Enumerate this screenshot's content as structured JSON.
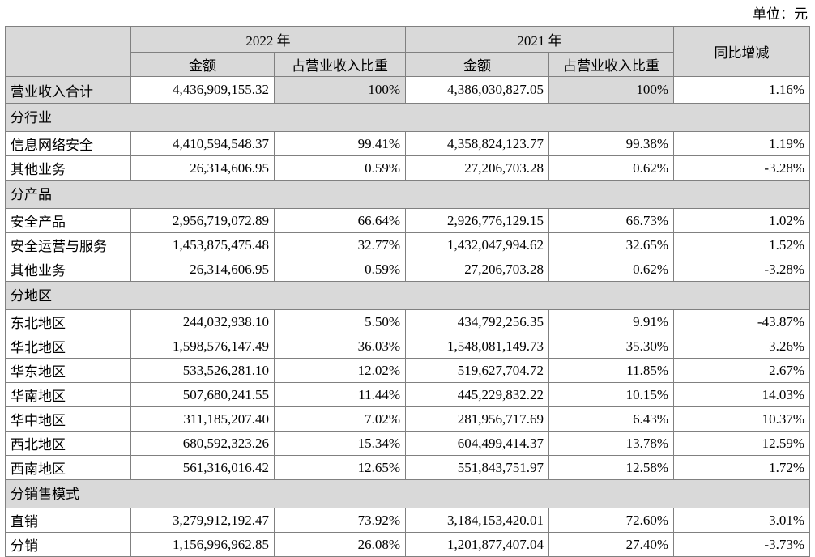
{
  "unit_label": "单位：元",
  "columns": {
    "year_2022": "2022 年",
    "year_2021": "2021 年",
    "amount": "金额",
    "share": "占营业收入比重",
    "yoy": "同比增减"
  },
  "colors": {
    "header_bg": "#d9d9d9",
    "border": "#808080"
  },
  "table": {
    "total_row": {
      "label": "营业收入合计",
      "amount_2022": "4,436,909,155.32",
      "share_2022": "100%",
      "amount_2021": "4,386,030,827.05",
      "share_2021": "100%",
      "yoy": "1.16%"
    },
    "sections": [
      {
        "title": "分行业",
        "rows": [
          {
            "label": "信息网络安全",
            "amount_2022": "4,410,594,548.37",
            "share_2022": "99.41%",
            "amount_2021": "4,358,824,123.77",
            "share_2021": "99.38%",
            "yoy": "1.19%"
          },
          {
            "label": "其他业务",
            "amount_2022": "26,314,606.95",
            "share_2022": "0.59%",
            "amount_2021": "27,206,703.28",
            "share_2021": "0.62%",
            "yoy": "-3.28%"
          }
        ]
      },
      {
        "title": "分产品",
        "rows": [
          {
            "label": "安全产品",
            "amount_2022": "2,956,719,072.89",
            "share_2022": "66.64%",
            "amount_2021": "2,926,776,129.15",
            "share_2021": "66.73%",
            "yoy": "1.02%"
          },
          {
            "label": "安全运营与服务",
            "amount_2022": "1,453,875,475.48",
            "share_2022": "32.77%",
            "amount_2021": "1,432,047,994.62",
            "share_2021": "32.65%",
            "yoy": "1.52%"
          },
          {
            "label": "其他业务",
            "amount_2022": "26,314,606.95",
            "share_2022": "0.59%",
            "amount_2021": "27,206,703.28",
            "share_2021": "0.62%",
            "yoy": "-3.28%"
          }
        ]
      },
      {
        "title": "分地区",
        "rows": [
          {
            "label": "东北地区",
            "amount_2022": "244,032,938.10",
            "share_2022": "5.50%",
            "amount_2021": "434,792,256.35",
            "share_2021": "9.91%",
            "yoy": "-43.87%"
          },
          {
            "label": "华北地区",
            "amount_2022": "1,598,576,147.49",
            "share_2022": "36.03%",
            "amount_2021": "1,548,081,149.73",
            "share_2021": "35.30%",
            "yoy": "3.26%"
          },
          {
            "label": "华东地区",
            "amount_2022": "533,526,281.10",
            "share_2022": "12.02%",
            "amount_2021": "519,627,704.72",
            "share_2021": "11.85%",
            "yoy": "2.67%"
          },
          {
            "label": "华南地区",
            "amount_2022": "507,680,241.55",
            "share_2022": "11.44%",
            "amount_2021": "445,229,832.22",
            "share_2021": "10.15%",
            "yoy": "14.03%"
          },
          {
            "label": "华中地区",
            "amount_2022": "311,185,207.40",
            "share_2022": "7.02%",
            "amount_2021": "281,956,717.69",
            "share_2021": "6.43%",
            "yoy": "10.37%"
          },
          {
            "label": "西北地区",
            "amount_2022": "680,592,323.26",
            "share_2022": "15.34%",
            "amount_2021": "604,499,414.37",
            "share_2021": "13.78%",
            "yoy": "12.59%"
          },
          {
            "label": "西南地区",
            "amount_2022": "561,316,016.42",
            "share_2022": "12.65%",
            "amount_2021": "551,843,751.97",
            "share_2021": "12.58%",
            "yoy": "1.72%"
          }
        ]
      },
      {
        "title": "分销售模式",
        "rows": [
          {
            "label": "直销",
            "amount_2022": "3,279,912,192.47",
            "share_2022": "73.92%",
            "amount_2021": "3,184,153,420.01",
            "share_2021": "72.60%",
            "yoy": "3.01%"
          },
          {
            "label": "分销",
            "amount_2022": "1,156,996,962.85",
            "share_2022": "26.08%",
            "amount_2021": "1,201,877,407.04",
            "share_2021": "27.40%",
            "yoy": "-3.73%"
          }
        ]
      }
    ]
  }
}
